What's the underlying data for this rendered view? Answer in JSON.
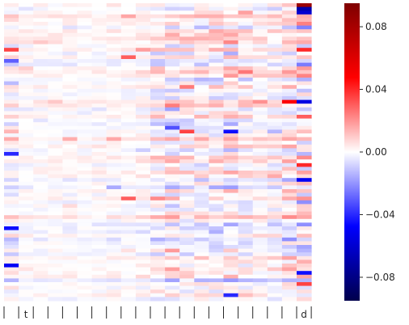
{
  "chart_data": {
    "type": "heatmap",
    "title": "",
    "xlabel": "",
    "ylabel": "",
    "n_rows": 80,
    "n_cols": 21,
    "x_tick_labels": [
      "",
      "t",
      "",
      "",
      "",
      "",
      "",
      "",
      "",
      "",
      "",
      "",
      "",
      "",
      "",
      "",
      "",
      "",
      "",
      "",
      "d",
      ""
    ],
    "colorbar": {
      "colormap": "seismic",
      "vmin": -0.095,
      "vmax": 0.095,
      "ticks": [
        0.08,
        0.04,
        0.0,
        -0.04,
        -0.08
      ],
      "tick_labels": [
        "0.08",
        "0.04",
        "0.00",
        "−0.04",
        "−0.08"
      ],
      "colors": [
        "#00004c",
        "#0000ff",
        "#ffffff",
        "#ff0000",
        "#7f0000"
      ]
    },
    "column_mean_strength": [
      0.01,
      0.004,
      0.004,
      0.004,
      0.005,
      0.003,
      0.004,
      0.005,
      0.004,
      0.006,
      0.01,
      0.014,
      0.01,
      0.011,
      0.012,
      0.015,
      0.01,
      0.008,
      0.008,
      0.014,
      0.022
    ],
    "strong_cells": [
      {
        "row": 2,
        "col": 20,
        "value": -0.06
      },
      {
        "row": 12,
        "col": 0,
        "value": 0.035
      },
      {
        "row": 12,
        "col": 20,
        "value": 0.04
      },
      {
        "row": 15,
        "col": 0,
        "value": -0.03
      },
      {
        "row": 14,
        "col": 8,
        "value": 0.03
      },
      {
        "row": 22,
        "col": 12,
        "value": 0.025
      },
      {
        "row": 26,
        "col": 20,
        "value": -0.055
      },
      {
        "row": 34,
        "col": 12,
        "value": 0.035
      },
      {
        "row": 34,
        "col": 15,
        "value": -0.045
      },
      {
        "row": 40,
        "col": 0,
        "value": -0.04
      },
      {
        "row": 43,
        "col": 20,
        "value": 0.04
      },
      {
        "row": 47,
        "col": 20,
        "value": -0.05
      },
      {
        "row": 52,
        "col": 8,
        "value": 0.03
      },
      {
        "row": 60,
        "col": 0,
        "value": -0.045
      },
      {
        "row": 70,
        "col": 0,
        "value": -0.05
      },
      {
        "row": 72,
        "col": 20,
        "value": -0.045
      },
      {
        "row": 75,
        "col": 20,
        "value": 0.035
      },
      {
        "row": 78,
        "col": 15,
        "value": -0.04
      }
    ],
    "last_column_top_values": [
      0.085,
      -0.07
    ]
  }
}
